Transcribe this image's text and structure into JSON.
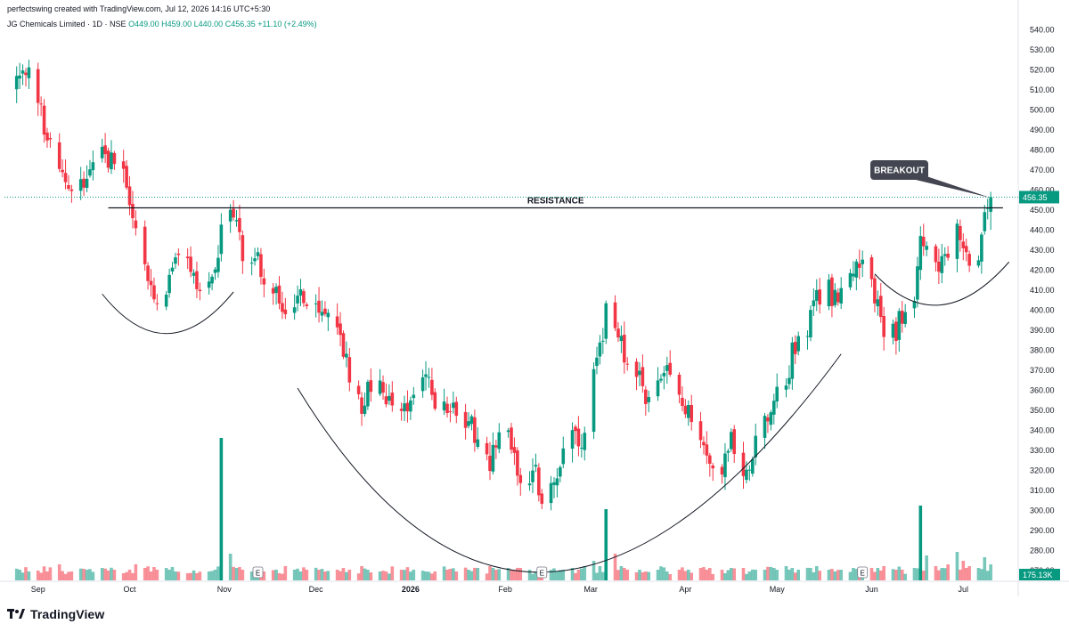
{
  "header": {
    "created_by": "perfectswing created with TradingView.com, Jul 12, 2026 14:16 UTC+5:30"
  },
  "symbol_bar": {
    "name": "JG Chemicals Limited · 1D · NSE",
    "open": "O449.00",
    "high": "H459.00",
    "low": "L440.00",
    "close": "C456.35",
    "change": "+11.10 (+2.49%)"
  },
  "brand": {
    "name": "TradingView",
    "icon": "tradingview-logo-icon"
  },
  "colors": {
    "up": "#089981",
    "down": "#f23645",
    "accent": "#089981"
  },
  "chart_data": {
    "type": "candlestick",
    "title": "",
    "xlabel": "",
    "ylabel": "",
    "ylim": [
      265,
      545
    ],
    "y_ticks": [
      270,
      280,
      290,
      300,
      310,
      320,
      330,
      340,
      350,
      360,
      370,
      380,
      390,
      400,
      410,
      420,
      430,
      440,
      450,
      460,
      470,
      480,
      490,
      500,
      510,
      520,
      530,
      540
    ],
    "x_ticks": [
      {
        "label": "Sep",
        "date": "2025-09-01"
      },
      {
        "label": "Oct",
        "date": "2025-10-01"
      },
      {
        "label": "Nov",
        "date": "2025-11-01"
      },
      {
        "label": "Dec",
        "date": "2025-12-01"
      },
      {
        "label": "2026",
        "date": "2026-01-01"
      },
      {
        "label": "Feb",
        "date": "2026-02-01"
      },
      {
        "label": "Mar",
        "date": "2026-03-01"
      },
      {
        "label": "Apr",
        "date": "2026-04-01"
      },
      {
        "label": "May",
        "date": "2026-05-01"
      },
      {
        "label": "Jun",
        "date": "2026-06-01"
      },
      {
        "label": "Jul",
        "date": "2026-07-01"
      }
    ],
    "last_price": {
      "value": 456.35,
      "label": "456.35"
    },
    "last_volume": {
      "label": "175.13K"
    },
    "resistance": {
      "label": "RESISTANCE",
      "price": 451,
      "from": "2025-09-24",
      "to": "2026-07-14"
    },
    "callout": {
      "label": "BREAKOUT",
      "target_date": "2026-07-10",
      "target_price": 456
    },
    "earnings_markers": [
      {
        "label": "E",
        "date": "2025-11-12"
      },
      {
        "label": "E",
        "date": "2026-02-13"
      },
      {
        "label": "E",
        "date": "2026-05-29"
      }
    ],
    "arcs": [
      {
        "name": "left-cup-arc",
        "start": [
          "2025-09-22",
          408
        ],
        "control": [
          "2025-10-13",
          368
        ],
        "end": [
          "2025-11-04",
          409
        ]
      },
      {
        "name": "large-cup-arc",
        "start": [
          "2025-11-25",
          361
        ],
        "control": [
          "2026-02-10",
          169
        ],
        "end": [
          "2026-05-22",
          378
        ]
      },
      {
        "name": "handle-arc",
        "start": [
          "2026-06-02",
          418
        ],
        "control": [
          "2026-06-23",
          384
        ],
        "end": [
          "2026-07-16",
          424
        ]
      }
    ],
    "anchors": [
      [
        "2025-08-26",
        515,
        600
      ],
      [
        "2025-08-29",
        517,
        500
      ],
      [
        "2025-09-01",
        505,
        550
      ],
      [
        "2025-09-04",
        485,
        500
      ],
      [
        "2025-09-08",
        468,
        900
      ],
      [
        "2025-09-12",
        462,
        500
      ],
      [
        "2025-09-17",
        468,
        600
      ],
      [
        "2025-09-22",
        478,
        700
      ],
      [
        "2025-09-26",
        474,
        600
      ],
      [
        "2025-09-29",
        468,
        400
      ],
      [
        "2025-10-01",
        452,
        600
      ],
      [
        "2025-10-03",
        440,
        900
      ],
      [
        "2025-10-06",
        425,
        700
      ],
      [
        "2025-10-08",
        410,
        500
      ],
      [
        "2025-10-10",
        405,
        600
      ],
      [
        "2025-10-14",
        415,
        600
      ],
      [
        "2025-10-16",
        428,
        500
      ],
      [
        "2025-10-20",
        422,
        400
      ],
      [
        "2025-10-23",
        412,
        400
      ],
      [
        "2025-10-27",
        409,
        500
      ],
      [
        "2025-10-29",
        415,
        600
      ],
      [
        "2025-10-31",
        440,
        8000
      ],
      [
        "2025-11-03",
        448,
        1500
      ],
      [
        "2025-11-05",
        442,
        700
      ],
      [
        "2025-11-07",
        428,
        600
      ],
      [
        "2025-11-10",
        420,
        500
      ],
      [
        "2025-11-12",
        425,
        600
      ],
      [
        "2025-11-14",
        418,
        500
      ],
      [
        "2025-11-18",
        410,
        600
      ],
      [
        "2025-11-21",
        392,
        800
      ],
      [
        "2025-11-24",
        405,
        600
      ],
      [
        "2025-11-26",
        410,
        500
      ],
      [
        "2025-11-28",
        402,
        600
      ],
      [
        "2025-12-02",
        396,
        600
      ],
      [
        "2025-12-04",
        398,
        500
      ],
      [
        "2025-12-08",
        392,
        600
      ],
      [
        "2025-12-10",
        380,
        700
      ],
      [
        "2025-12-12",
        368,
        600
      ],
      [
        "2025-12-16",
        352,
        800
      ],
      [
        "2025-12-18",
        362,
        600
      ],
      [
        "2025-12-22",
        365,
        500
      ],
      [
        "2025-12-24",
        358,
        500
      ],
      [
        "2025-12-29",
        352,
        600
      ],
      [
        "2026-01-02",
        358,
        600
      ],
      [
        "2026-01-06",
        364,
        500
      ],
      [
        "2026-01-09",
        355,
        500
      ],
      [
        "2026-01-13",
        350,
        600
      ],
      [
        "2026-01-16",
        352,
        500
      ],
      [
        "2026-01-20",
        345,
        600
      ],
      [
        "2026-01-23",
        335,
        700
      ],
      [
        "2026-01-27",
        324,
        800
      ],
      [
        "2026-01-29",
        332,
        600
      ],
      [
        "2026-02-02",
        340,
        700
      ],
      [
        "2026-02-04",
        325,
        600
      ],
      [
        "2026-02-06",
        318,
        700
      ],
      [
        "2026-02-09",
        312,
        600
      ],
      [
        "2026-02-11",
        318,
        500
      ],
      [
        "2026-02-13",
        305,
        700
      ],
      [
        "2026-02-16",
        312,
        600
      ],
      [
        "2026-02-18",
        318,
        500
      ],
      [
        "2026-02-20",
        325,
        600
      ],
      [
        "2026-02-23",
        338,
        700
      ],
      [
        "2026-02-25",
        330,
        600
      ],
      [
        "2026-02-27",
        336,
        800
      ],
      [
        "2026-03-02",
        365,
        1100
      ],
      [
        "2026-03-04",
        378,
        800
      ],
      [
        "2026-03-06",
        400,
        4000
      ],
      [
        "2026-03-09",
        390,
        1500
      ],
      [
        "2026-03-11",
        382,
        800
      ],
      [
        "2026-03-13",
        375,
        600
      ],
      [
        "2026-03-17",
        365,
        600
      ],
      [
        "2026-03-19",
        358,
        500
      ],
      [
        "2026-03-23",
        362,
        600
      ],
      [
        "2026-03-26",
        368,
        500
      ],
      [
        "2026-03-30",
        358,
        600
      ],
      [
        "2026-04-02",
        350,
        600
      ],
      [
        "2026-04-06",
        338,
        700
      ],
      [
        "2026-04-09",
        328,
        700
      ],
      [
        "2026-04-13",
        320,
        600
      ],
      [
        "2026-04-16",
        335,
        700
      ],
      [
        "2026-04-20",
        315,
        700
      ],
      [
        "2026-04-22",
        325,
        500
      ],
      [
        "2026-04-24",
        338,
        600
      ],
      [
        "2026-04-27",
        345,
        600
      ],
      [
        "2026-04-30",
        355,
        700
      ],
      [
        "2026-05-04",
        365,
        800
      ],
      [
        "2026-05-06",
        378,
        700
      ],
      [
        "2026-05-08",
        385,
        600
      ],
      [
        "2026-05-12",
        395,
        700
      ],
      [
        "2026-05-14",
        408,
        800
      ],
      [
        "2026-05-18",
        410,
        600
      ],
      [
        "2026-05-20",
        405,
        500
      ],
      [
        "2026-05-22",
        412,
        600
      ],
      [
        "2026-05-26",
        418,
        700
      ],
      [
        "2026-05-28",
        422,
        600
      ],
      [
        "2026-06-01",
        412,
        700
      ],
      [
        "2026-06-03",
        400,
        700
      ],
      [
        "2026-06-05",
        388,
        800
      ],
      [
        "2026-06-09",
        390,
        600
      ],
      [
        "2026-06-11",
        398,
        600
      ],
      [
        "2026-06-15",
        408,
        700
      ],
      [
        "2026-06-17",
        435,
        4200
      ],
      [
        "2026-06-19",
        430,
        1400
      ],
      [
        "2026-06-22",
        420,
        800
      ],
      [
        "2026-06-24",
        430,
        700
      ],
      [
        "2026-06-26",
        425,
        900
      ],
      [
        "2026-06-29",
        438,
        1600
      ],
      [
        "2026-07-01",
        430,
        1100
      ],
      [
        "2026-07-03",
        425,
        800
      ],
      [
        "2026-07-06",
        420,
        700
      ],
      [
        "2026-07-08",
        445,
        1300
      ],
      [
        "2026-07-10",
        456,
        1100
      ]
    ],
    "date_range": [
      "2025-08-25",
      "2026-07-10"
    ]
  }
}
